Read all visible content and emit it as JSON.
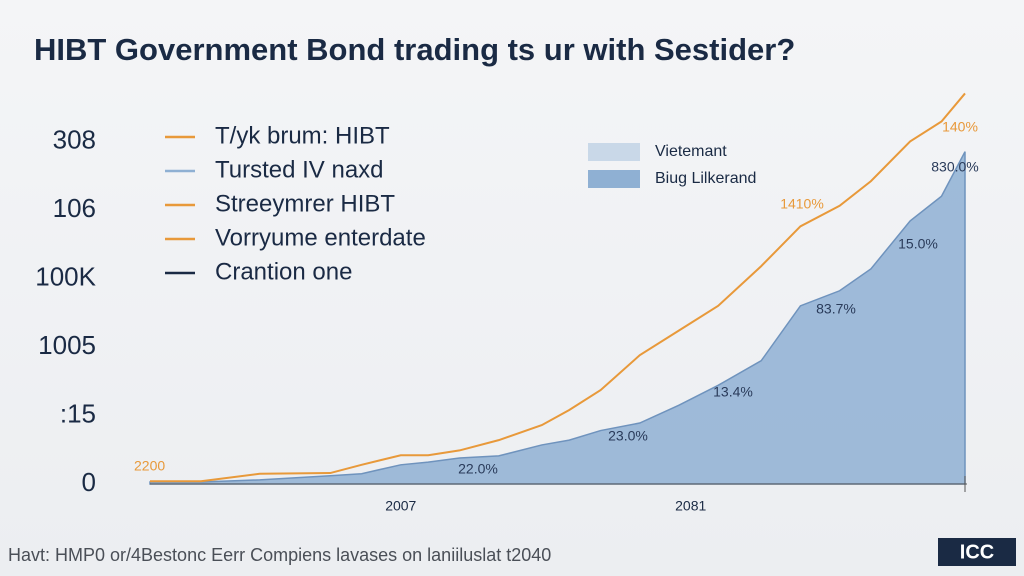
{
  "chart_data": {
    "type": "line-area",
    "title": "HIBT Government Bond trading ts ur with Sestider?",
    "x": [
      1943,
      1956,
      1971,
      1989,
      1997,
      2007,
      2014,
      2022,
      2032,
      2043,
      2050,
      2058,
      2068,
      2078,
      2088,
      2099,
      2109,
      2119,
      2127,
      2137,
      2145,
      2151
    ],
    "xlim": [
      1943,
      2151
    ],
    "xticks": [
      2007,
      2081
    ],
    "ylim": [
      0,
      5.75
    ],
    "yticks": [
      {
        "value": 0,
        "label": "0"
      },
      {
        "value": 1,
        "label": ":15"
      },
      {
        "value": 2,
        "label": "1005"
      },
      {
        "value": 3,
        "label": "100K"
      },
      {
        "value": 4,
        "label": "106"
      },
      {
        "value": 5,
        "label": "308"
      }
    ],
    "grid": false,
    "series": [
      {
        "name": "T/yk brum: HIBT",
        "color": "#e8993a",
        "kind": "line",
        "values": [
          0.04,
          0.04,
          0.15,
          0.16,
          0.28,
          0.42,
          0.42,
          0.49,
          0.64,
          0.86,
          1.08,
          1.37,
          1.88,
          2.24,
          2.6,
          3.18,
          3.76,
          4.06,
          4.42,
          5.0,
          5.29,
          5.7
        ]
      },
      {
        "name": "Biug Lilkerand",
        "color": "#8fb0d3",
        "kind": "area",
        "values": [
          0.03,
          0.03,
          0.06,
          0.12,
          0.15,
          0.28,
          0.32,
          0.38,
          0.41,
          0.57,
          0.64,
          0.78,
          0.89,
          1.15,
          1.44,
          1.8,
          2.6,
          2.82,
          3.14,
          3.84,
          4.2,
          4.85
        ]
      }
    ],
    "legend_left_extra": [
      {
        "name": "Tursted IV naxd",
        "color": "#8fb0d3"
      },
      {
        "name": "Streeymrer HIBT",
        "color": "#e8993a"
      },
      {
        "name": "Vorryume enterdate",
        "color": "#e8993a"
      },
      {
        "name": "Crantion one",
        "color": "#1a2a44"
      }
    ],
    "legend_right_extra": [
      {
        "name": "Vietemant",
        "color": "#c9d8e8"
      }
    ],
    "annotations": [
      "2200",
      "22.0%",
      "23.0%",
      "13.4%",
      "83.7%",
      "15.0%",
      "1410%",
      "140%",
      "830.0%"
    ],
    "footer": "Havt: HMP0 or/4Bestonc Eerr Compiens lavases on laniiluslat t2040",
    "logo": "ICC"
  }
}
